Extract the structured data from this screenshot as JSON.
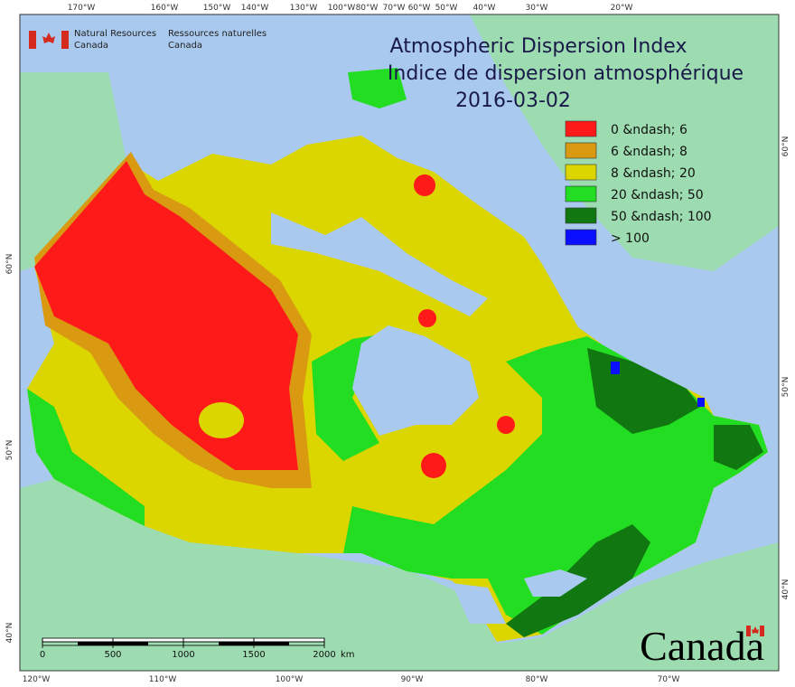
{
  "agency": {
    "en": [
      "Natural Resources",
      "Canada"
    ],
    "fr": [
      "Ressources naturelles",
      "Canada"
    ]
  },
  "title": [
    "Atmospheric Dispersion Index",
    "Indice de dispersion atmosphérique",
    "2016-03-02"
  ],
  "legend": [
    {
      "label": "0 &ndash; 6",
      "color": "#ff1a1a"
    },
    {
      "label": "6 &ndash; 8",
      "color": "#d99a12"
    },
    {
      "label": "8 &ndash; 20",
      "color": "#dcd600"
    },
    {
      "label": "20 &ndash; 50",
      "color": "#22dd22"
    },
    {
      "label": "50 &ndash; 100",
      "color": "#117711"
    },
    {
      "label": "> 100",
      "color": "#0a10ff"
    }
  ],
  "graticule": {
    "top": [
      "170°W",
      "160°W",
      "150°W",
      "140°W",
      "130°W",
      "100°W",
      "80°W",
      "70°W",
      "60°W",
      "50°W",
      "40°W",
      "30°W",
      "20°W"
    ],
    "bottom": [
      "120°W",
      "110°W",
      "100°W",
      "90°W",
      "80°W",
      "70°W"
    ],
    "left": [
      "60°N",
      "50°N",
      "40°N"
    ],
    "right": [
      "60°N",
      "50°N",
      "40°N"
    ]
  },
  "scale": {
    "ticks": [
      0,
      500,
      1000,
      1500,
      2000
    ],
    "unit": "km"
  },
  "wordmark": "Canada"
}
